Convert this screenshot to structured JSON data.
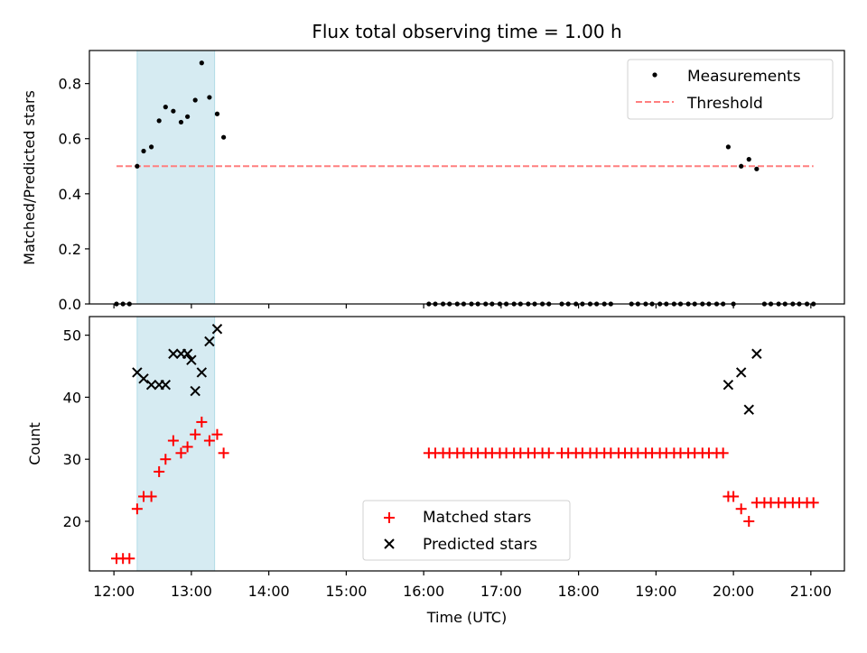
{
  "figure": {
    "title": "Flux total observing time = 1.00 h",
    "colors": {
      "measurement": "#000000",
      "threshold": "#ff7f7f",
      "matched": "#ff0000",
      "predicted": "#000000",
      "highlight": "#add8e6"
    }
  },
  "chart_data": [
    {
      "type": "scatter",
      "ylabel": "Matched/Predicted stars",
      "xlim": [
        "11:41",
        "21:26"
      ],
      "ylim": [
        0,
        0.92
      ],
      "yticks": [
        0.0,
        0.2,
        0.4,
        0.6,
        0.8
      ],
      "yticklabels": [
        "0.0",
        "0.2",
        "0.4",
        "0.6",
        "0.8"
      ],
      "grid": false,
      "legend_position": "top-right",
      "highlight_span": [
        "12:18",
        "13:18"
      ],
      "series": [
        {
          "name": "Measurements",
          "marker": "dot",
          "points": [
            [
              "12:02",
              0
            ],
            [
              "12:07",
              0
            ],
            [
              "12:12",
              0
            ],
            [
              "12:18",
              0.5
            ],
            [
              "12:23",
              0.555
            ],
            [
              "12:29",
              0.57
            ],
            [
              "12:35",
              0.665
            ],
            [
              "12:40",
              0.715
            ],
            [
              "12:46",
              0.7
            ],
            [
              "12:52",
              0.66
            ],
            [
              "12:57",
              0.68
            ],
            [
              "13:03",
              0.74
            ],
            [
              "13:08",
              0.875
            ],
            [
              "13:14",
              0.75
            ],
            [
              "13:20",
              0.69
            ],
            [
              "13:25",
              0.605
            ],
            [
              "16:04",
              0
            ],
            [
              "16:09",
              0
            ],
            [
              "16:15",
              0
            ],
            [
              "16:20",
              0
            ],
            [
              "16:26",
              0
            ],
            [
              "16:31",
              0
            ],
            [
              "16:37",
              0
            ],
            [
              "16:42",
              0
            ],
            [
              "16:48",
              0
            ],
            [
              "16:53",
              0
            ],
            [
              "16:59",
              0
            ],
            [
              "17:04",
              0
            ],
            [
              "17:10",
              0
            ],
            [
              "17:15",
              0
            ],
            [
              "17:21",
              0
            ],
            [
              "17:26",
              0
            ],
            [
              "17:32",
              0
            ],
            [
              "17:37",
              0
            ],
            [
              "17:47",
              0
            ],
            [
              "17:52",
              0
            ],
            [
              "17:58",
              0
            ],
            [
              "18:03",
              0
            ],
            [
              "18:09",
              0
            ],
            [
              "18:14",
              0
            ],
            [
              "18:20",
              0
            ],
            [
              "18:25",
              0
            ],
            [
              "18:41",
              0
            ],
            [
              "18:46",
              0
            ],
            [
              "18:52",
              0
            ],
            [
              "18:57",
              0
            ],
            [
              "19:03",
              0
            ],
            [
              "19:08",
              0
            ],
            [
              "19:14",
              0
            ],
            [
              "19:19",
              0
            ],
            [
              "19:25",
              0
            ],
            [
              "19:30",
              0
            ],
            [
              "19:36",
              0
            ],
            [
              "19:41",
              0
            ],
            [
              "19:47",
              0
            ],
            [
              "19:52",
              0
            ],
            [
              "19:56",
              0.57
            ],
            [
              "20:00",
              0
            ],
            [
              "20:06",
              0.5
            ],
            [
              "20:12",
              0.525
            ],
            [
              "20:18",
              0.49
            ],
            [
              "20:24",
              0
            ],
            [
              "20:29",
              0
            ],
            [
              "20:35",
              0
            ],
            [
              "20:40",
              0
            ],
            [
              "20:46",
              0
            ],
            [
              "20:51",
              0
            ],
            [
              "20:57",
              0
            ],
            [
              "21:02",
              0
            ]
          ]
        },
        {
          "name": "Threshold",
          "style": "dashed-line",
          "points": [
            [
              "12:02",
              0.5
            ],
            [
              "21:02",
              0.5
            ]
          ]
        }
      ]
    },
    {
      "type": "scatter",
      "xlabel": "Time (UTC)",
      "ylabel": "Count",
      "xlim": [
        "11:41",
        "21:26"
      ],
      "ylim": [
        12,
        53
      ],
      "xticklabels": [
        "12:00",
        "13:00",
        "14:00",
        "15:00",
        "16:00",
        "17:00",
        "18:00",
        "19:00",
        "20:00",
        "21:00"
      ],
      "yticks": [
        20,
        30,
        40,
        50
      ],
      "yticklabels": [
        "20",
        "30",
        "40",
        "50"
      ],
      "grid": false,
      "legend_position": "lower-center",
      "highlight_span": [
        "12:18",
        "13:18"
      ],
      "series": [
        {
          "name": "Matched stars",
          "marker": "plus",
          "points": [
            [
              "12:02",
              14
            ],
            [
              "12:07",
              14
            ],
            [
              "12:12",
              14
            ],
            [
              "12:18",
              22
            ],
            [
              "12:23",
              24
            ],
            [
              "12:29",
              24
            ],
            [
              "12:35",
              28
            ],
            [
              "12:40",
              30
            ],
            [
              "12:46",
              33
            ],
            [
              "12:52",
              31
            ],
            [
              "12:57",
              32
            ],
            [
              "13:03",
              34
            ],
            [
              "13:08",
              36
            ],
            [
              "13:14",
              33
            ],
            [
              "13:20",
              34
            ],
            [
              "13:25",
              31
            ],
            [
              "16:04",
              31
            ],
            [
              "16:09",
              31
            ],
            [
              "16:15",
              31
            ],
            [
              "16:20",
              31
            ],
            [
              "16:26",
              31
            ],
            [
              "16:31",
              31
            ],
            [
              "16:37",
              31
            ],
            [
              "16:42",
              31
            ],
            [
              "16:48",
              31
            ],
            [
              "16:53",
              31
            ],
            [
              "16:59",
              31
            ],
            [
              "17:04",
              31
            ],
            [
              "17:10",
              31
            ],
            [
              "17:15",
              31
            ],
            [
              "17:21",
              31
            ],
            [
              "17:26",
              31
            ],
            [
              "17:32",
              31
            ],
            [
              "17:37",
              31
            ],
            [
              "17:47",
              31
            ],
            [
              "17:52",
              31
            ],
            [
              "17:58",
              31
            ],
            [
              "18:03",
              31
            ],
            [
              "18:09",
              31
            ],
            [
              "18:14",
              31
            ],
            [
              "18:20",
              31
            ],
            [
              "18:25",
              31
            ],
            [
              "18:31",
              31
            ],
            [
              "18:36",
              31
            ],
            [
              "18:41",
              31
            ],
            [
              "18:46",
              31
            ],
            [
              "18:52",
              31
            ],
            [
              "18:57",
              31
            ],
            [
              "19:03",
              31
            ],
            [
              "19:08",
              31
            ],
            [
              "19:14",
              31
            ],
            [
              "19:19",
              31
            ],
            [
              "19:25",
              31
            ],
            [
              "19:30",
              31
            ],
            [
              "19:36",
              31
            ],
            [
              "19:41",
              31
            ],
            [
              "19:47",
              31
            ],
            [
              "19:52",
              31
            ],
            [
              "19:56",
              24
            ],
            [
              "20:00",
              24
            ],
            [
              "20:06",
              22
            ],
            [
              "20:12",
              20
            ],
            [
              "20:18",
              23
            ],
            [
              "20:24",
              23
            ],
            [
              "20:29",
              23
            ],
            [
              "20:35",
              23
            ],
            [
              "20:40",
              23
            ],
            [
              "20:46",
              23
            ],
            [
              "20:51",
              23
            ],
            [
              "20:57",
              23
            ],
            [
              "21:02",
              23
            ]
          ]
        },
        {
          "name": "Predicted stars",
          "marker": "x",
          "points": [
            [
              "12:18",
              44
            ],
            [
              "12:23",
              43
            ],
            [
              "12:29",
              42
            ],
            [
              "12:35",
              42
            ],
            [
              "12:40",
              42
            ],
            [
              "12:46",
              47
            ],
            [
              "12:52",
              47
            ],
            [
              "12:57",
              47
            ],
            [
              "13:00",
              46
            ],
            [
              "13:03",
              41
            ],
            [
              "13:08",
              44
            ],
            [
              "13:14",
              49
            ],
            [
              "13:20",
              51
            ],
            [
              "19:56",
              42
            ],
            [
              "20:06",
              44
            ],
            [
              "20:12",
              38
            ],
            [
              "20:18",
              47
            ]
          ]
        }
      ]
    }
  ]
}
